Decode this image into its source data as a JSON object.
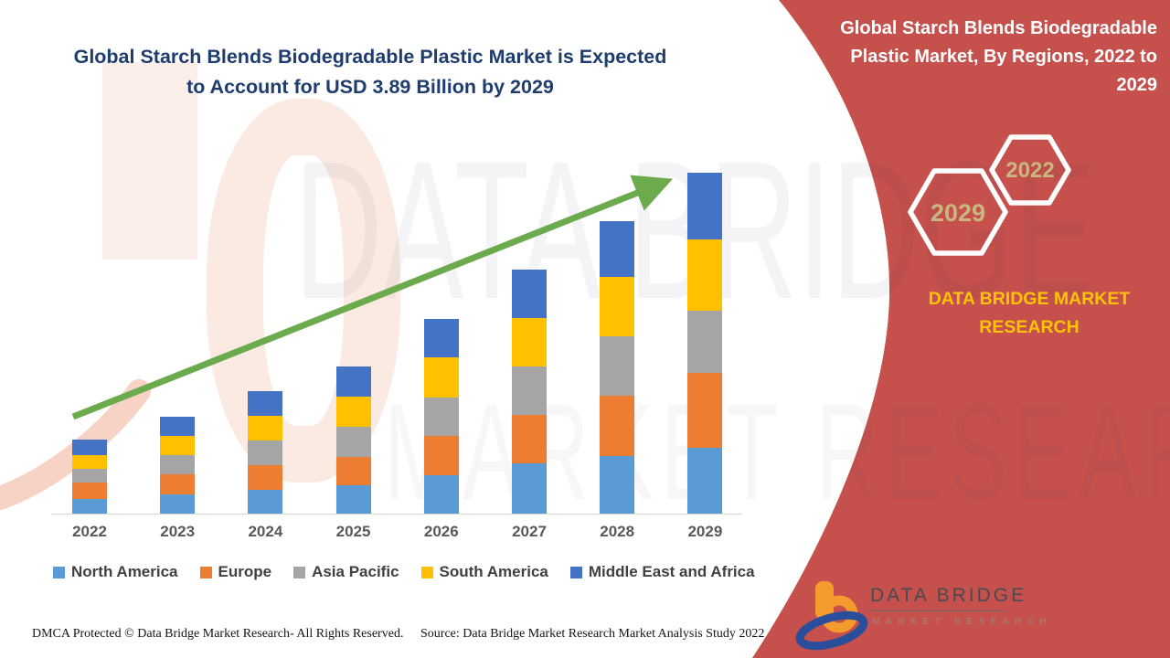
{
  "left_title": {
    "lines": [
      "Global Starch Blends Biodegradable Plastic Market is Expected",
      "to Account for USD 3.89 Billion by 2029"
    ],
    "color": "#1E3C6E"
  },
  "right_panel": {
    "bg_color": "#C5504C",
    "title_lines": [
      "Global Starch Blends Biodegradable",
      "Plastic Market, By Regions, 2022 to",
      "2029"
    ],
    "hexagons": [
      {
        "label": "2029"
      },
      {
        "label": "2022"
      }
    ],
    "hexagon_label_color": "#C8B87D",
    "brand_text": "DATA BRIDGE MARKET RESEARCH",
    "brand_text_color": "#FFC408"
  },
  "logo": {
    "name": "DATA BRIDGE",
    "tagline": "MARKET RESEARCH"
  },
  "watermark": {
    "line1": "DATA BRIDGE",
    "line2": "MARKET RESEARCH"
  },
  "footer": {
    "dmca": "DMCA Protected © Data Bridge Market Research- All Rights Reserved.",
    "source": "Source: Data Bridge Market Research Market Analysis Study 2022"
  },
  "chart_data": {
    "type": "bar",
    "stacked": true,
    "title": "Global Starch Blends Biodegradable Plastic Market is Expected to Account for USD 3.89 Billion by 2029",
    "unit": "USD Billion",
    "categories": [
      "2022",
      "2023",
      "2024",
      "2025",
      "2026",
      "2027",
      "2028",
      "2029"
    ],
    "series": [
      {
        "name": "North America",
        "color": "#5B9BD5",
        "values": [
          0.17,
          0.22,
          0.27,
          0.32,
          0.44,
          0.57,
          0.66,
          0.75
        ]
      },
      {
        "name": "Europe",
        "color": "#ED7D31",
        "values": [
          0.19,
          0.23,
          0.28,
          0.32,
          0.45,
          0.55,
          0.69,
          0.86
        ]
      },
      {
        "name": "Asia Pacific",
        "color": "#A5A5A5",
        "values": [
          0.16,
          0.22,
          0.28,
          0.34,
          0.44,
          0.55,
          0.68,
          0.71
        ]
      },
      {
        "name": "South America",
        "color": "#FFC000",
        "values": [
          0.16,
          0.22,
          0.28,
          0.34,
          0.46,
          0.55,
          0.68,
          0.81
        ]
      },
      {
        "name": "Middle East and Africa",
        "color": "#4472C4",
        "values": [
          0.18,
          0.22,
          0.28,
          0.34,
          0.44,
          0.55,
          0.64,
          0.76
        ]
      }
    ],
    "totals_estimated": [
      0.86,
      1.11,
      1.39,
      1.66,
      2.23,
      2.77,
      3.35,
      3.89
    ],
    "ylim": [
      0,
      4.2
    ],
    "grid": false,
    "legend_position": "bottom",
    "trend_arrow": true,
    "trend_arrow_color": "#6BAB4D"
  }
}
